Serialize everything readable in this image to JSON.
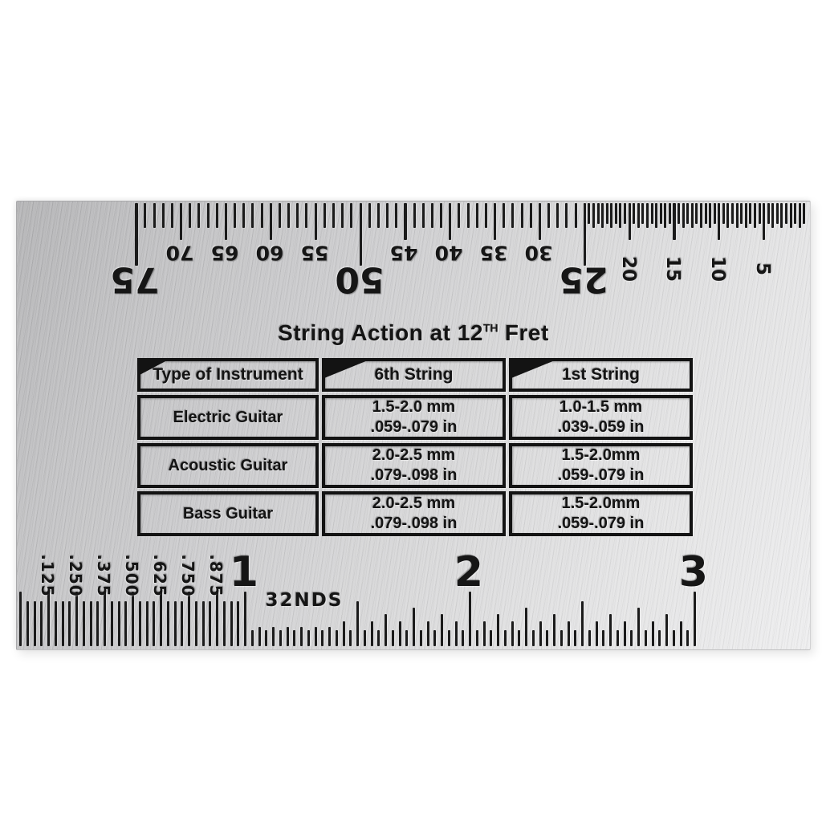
{
  "title": {
    "prefix": "String Action at 12",
    "superscript": "TH",
    "suffix": " Fret"
  },
  "table": {
    "headers": [
      "Type of Instrument",
      "6th String",
      "1st String"
    ],
    "rows": [
      {
        "instrument": "Electric Guitar",
        "string6": [
          "1.5-2.0 mm",
          ".059-.079 in"
        ],
        "string1": [
          "1.0-1.5 mm",
          ".039-.059 in"
        ]
      },
      {
        "instrument": "Acoustic Guitar",
        "string6": [
          "2.0-2.5 mm",
          ".079-.098 in"
        ],
        "string1": [
          "1.5-2.0mm",
          ".059-.079 in"
        ]
      },
      {
        "instrument": "Bass Guitar",
        "string6": [
          "2.0-2.5 mm",
          ".079-.098 in"
        ],
        "string1": [
          "1.5-2.0mm",
          ".059-.079 in"
        ]
      }
    ]
  },
  "top_ruler": {
    "unit": "mm",
    "max_value": 75,
    "fine_tick_region_max": 25,
    "major_labels": [
      {
        "value": 75,
        "text": "75"
      },
      {
        "value": 50,
        "text": "50"
      },
      {
        "value": 25,
        "text": "25"
      }
    ],
    "minor_labels": [
      {
        "value": 70,
        "text": "70"
      },
      {
        "value": 65,
        "text": "65"
      },
      {
        "value": 60,
        "text": "60"
      },
      {
        "value": 55,
        "text": "55"
      },
      {
        "value": 45,
        "text": "45"
      },
      {
        "value": 40,
        "text": "40"
      },
      {
        "value": 35,
        "text": "35"
      },
      {
        "value": 30,
        "text": "30"
      }
    ],
    "side_labels": [
      {
        "value": 20,
        "text": "20"
      },
      {
        "value": 15,
        "text": "15"
      },
      {
        "value": 10,
        "text": "10"
      },
      {
        "value": 5,
        "text": "5"
      }
    ]
  },
  "bottom_ruler": {
    "scale_label": "32NDS",
    "inch_labels": [
      {
        "value": 1,
        "text": "1"
      },
      {
        "value": 2,
        "text": "2"
      },
      {
        "value": 3,
        "text": "3"
      }
    ],
    "fraction_labels": [
      {
        "value": 0.125,
        "text": ".125"
      },
      {
        "value": 0.25,
        "text": ".250"
      },
      {
        "value": 0.375,
        "text": ".375"
      },
      {
        "value": 0.5,
        "text": ".500"
      },
      {
        "value": 0.625,
        "text": ".625"
      },
      {
        "value": 0.75,
        "text": ".750"
      },
      {
        "value": 0.875,
        "text": ".875"
      }
    ]
  },
  "colors": {
    "plate_light": "#ededee",
    "plate_dark": "#b0b0b2",
    "engraving": "#151515"
  }
}
